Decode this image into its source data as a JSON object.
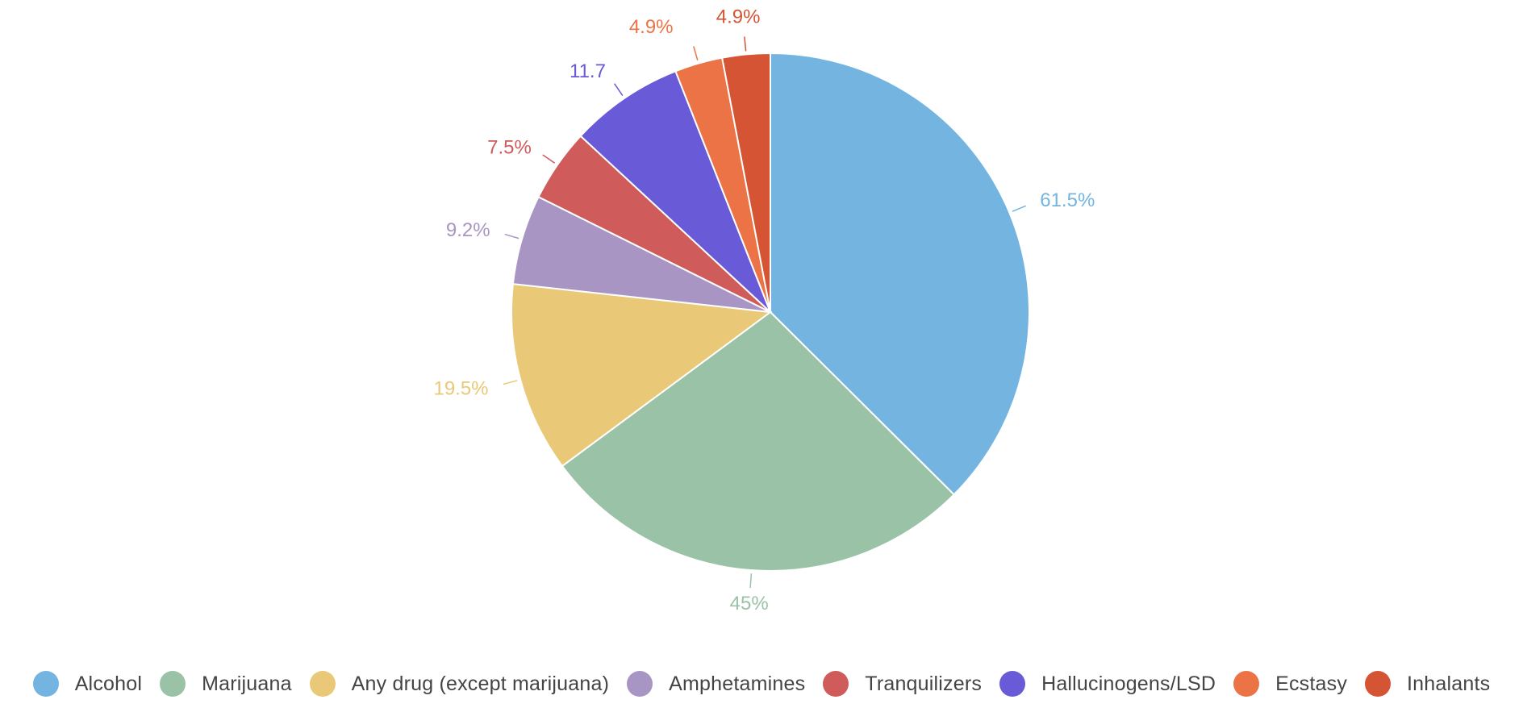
{
  "chart_data": {
    "type": "pie",
    "title": "",
    "start_angle_deg": 0,
    "direction": "clockwise",
    "slices": [
      {
        "name": "Alcohol",
        "value": 61.5,
        "label": "61.5%",
        "color": "#74B4E1"
      },
      {
        "name": "Marijuana",
        "value": 45,
        "label": "45%",
        "color": "#9AC2A7"
      },
      {
        "name": "Any drug (except marijuana)",
        "value": 19.5,
        "label": "19.5%",
        "color": "#E9C977"
      },
      {
        "name": "Amphetamines",
        "value": 9.2,
        "label": "9.2%",
        "color": "#A895C3"
      },
      {
        "name": "Tranquilizers",
        "value": 7.5,
        "label": "7.5%",
        "color": "#CF5B5A"
      },
      {
        "name": "Hallucinogens/LSD",
        "value": 11.7,
        "label": "11.7",
        "color": "#695AD8"
      },
      {
        "name": "Ecstasy",
        "value": 4.9,
        "label": "4.9%",
        "color": "#EC7346"
      },
      {
        "name": "Inhalants",
        "value": 4.9,
        "label": "4.9%",
        "color": "#D55434"
      }
    ],
    "legend_position": "bottom"
  }
}
